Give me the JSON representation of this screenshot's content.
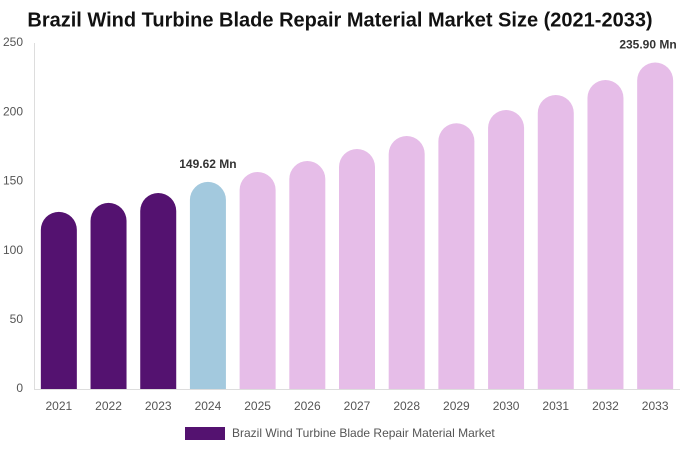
{
  "chart_data": {
    "type": "bar",
    "title": "Brazil Wind Turbine Blade Repair Material Market Size (2021-2033)",
    "categories": [
      "2021",
      "2022",
      "2023",
      "2024",
      "2025",
      "2026",
      "2027",
      "2028",
      "2029",
      "2030",
      "2031",
      "2032",
      "2033"
    ],
    "series": [
      {
        "name": "Brazil Wind Turbine Blade Repair Material Market",
        "color": "#541270",
        "values": [
          128,
          134.5,
          141.6,
          149.62,
          156.8,
          164.7,
          173.4,
          182.8,
          192,
          201.6,
          212.4,
          223.3,
          235.9
        ],
        "value_labels": [
          null,
          null,
          null,
          "149.62 Mn",
          null,
          null,
          null,
          null,
          null,
          null,
          null,
          null,
          "235.90 Mn"
        ],
        "bar_colors": [
          "#541270",
          "#541270",
          "#541270",
          "#a3c9de",
          "#e6bde8",
          "#e6bde8",
          "#e6bde8",
          "#e6bde8",
          "#e6bde8",
          "#e6bde8",
          "#e6bde8",
          "#e6bde8",
          "#e6bde8"
        ]
      }
    ],
    "ylim": [
      0,
      250
    ],
    "yticks": [
      0,
      50,
      100,
      150,
      200,
      250
    ],
    "grid": false
  }
}
